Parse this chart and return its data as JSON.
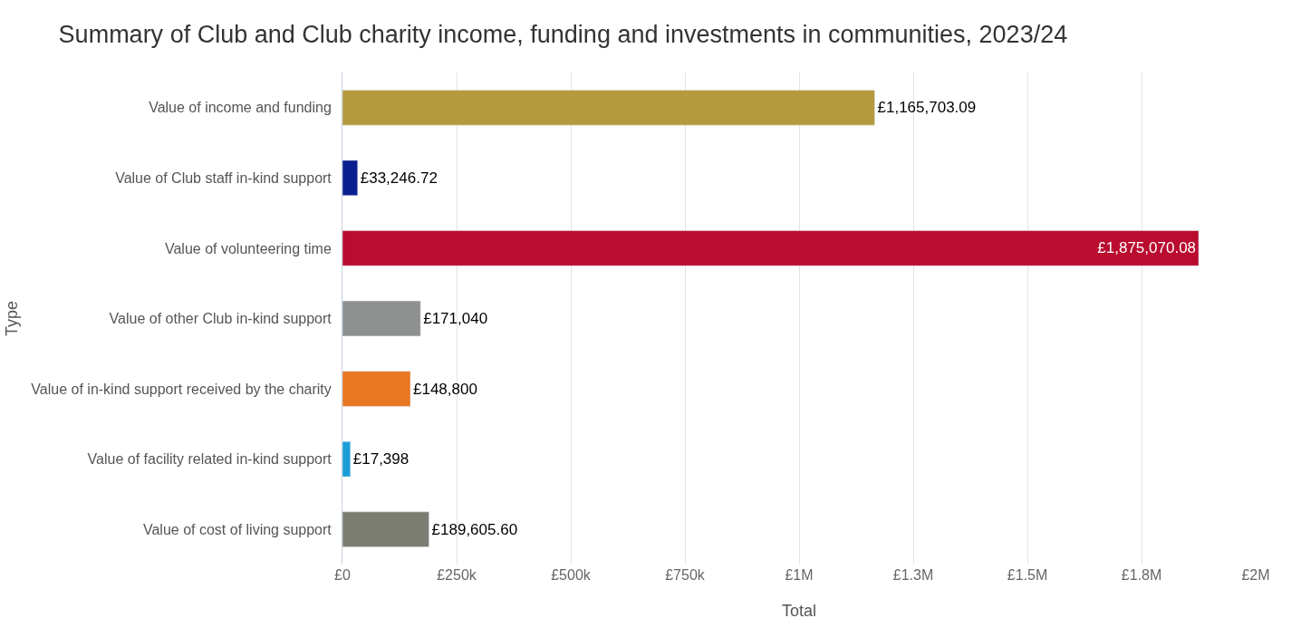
{
  "chart_data": {
    "type": "bar",
    "orientation": "horizontal",
    "title": "Summary of Club and Club charity income, funding and investments in communities, 2023/24",
    "xlabel": "Total",
    "ylabel": "Type",
    "categories": [
      "Value of income and funding",
      "Value of Club staff in-kind support",
      "Value of volunteering time",
      "Value of other Club in-kind support",
      "Value of in-kind support received by the charity",
      "Value of facility related in-kind support",
      "Value of cost of living support"
    ],
    "values": [
      1165703.09,
      33246.72,
      1875070.08,
      171040,
      148800,
      17398,
      189605.6
    ],
    "colors": [
      "#b5993f",
      "#0a1f8f",
      "#b90c2f",
      "#8e9090",
      "#e87722",
      "#1a9ed8",
      "#7c7d72"
    ],
    "value_labels": [
      "£1,165,703.09",
      "£33,246.72",
      "£1,875,070.08",
      "£171,040",
      "£148,800",
      "£17,398",
      "£189,605.60"
    ],
    "xlim": [
      0,
      2000000
    ],
    "xticks": [
      {
        "value": 0,
        "label": "£0"
      },
      {
        "value": 250000,
        "label": "£250k"
      },
      {
        "value": 500000,
        "label": "£500k"
      },
      {
        "value": 750000,
        "label": "£750k"
      },
      {
        "value": 1000000,
        "label": "£1M"
      },
      {
        "value": 1250000,
        "label": "£1.3M"
      },
      {
        "value": 1500000,
        "label": "£1.5M"
      },
      {
        "value": 1750000,
        "label": "£1.8M"
      },
      {
        "value": 2000000,
        "label": "£2M"
      }
    ],
    "grid": "x"
  }
}
